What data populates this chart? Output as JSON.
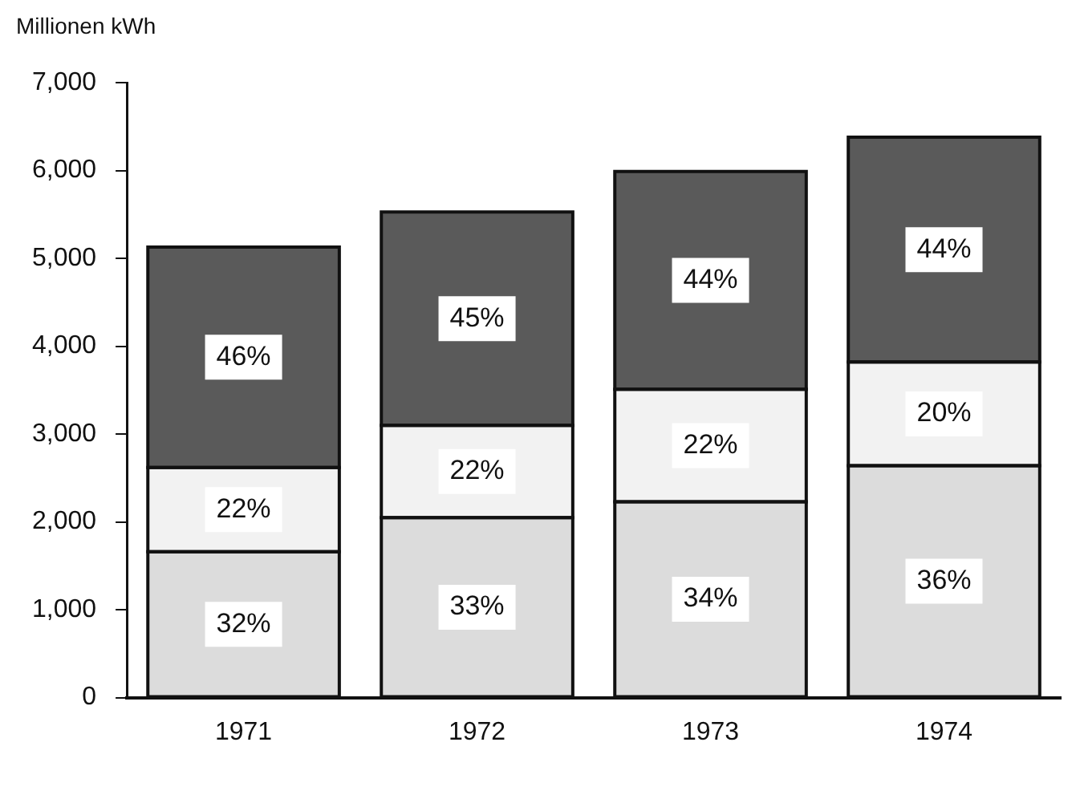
{
  "chart_data": {
    "type": "bar",
    "ylabel": "Millionen kWh",
    "categories": [
      "1971",
      "1972",
      "1973",
      "1974"
    ],
    "stacked": true,
    "ylim": [
      0,
      7000
    ],
    "yticks": [
      0,
      {
        "value": 1000,
        "label": "1,000"
      },
      {
        "value": 2000,
        "label": "2,000"
      },
      {
        "value": 3000,
        "label": "3,000"
      },
      {
        "value": 4000,
        "label": "4,000"
      },
      {
        "value": 5000,
        "label": "5,000"
      },
      {
        "value": 6000,
        "label": "6,000"
      },
      {
        "value": 7000,
        "label": "7,000"
      }
    ],
    "grid": false,
    "legend": false,
    "series": [
      {
        "color": "#dcdcdc",
        "values": [
          1660,
          2050,
          2230,
          2640
        ]
      },
      {
        "color": "#f2f2f2",
        "values": [
          960,
          1050,
          1280,
          1180
        ]
      },
      {
        "color": "#5a5a5a",
        "values": [
          2510,
          2430,
          2480,
          2560
        ]
      }
    ],
    "annotations": [
      "32%",
      "33%",
      "34%",
      "36%",
      "22%",
      "22%",
      "22%",
      "20%",
      "46%",
      "45%",
      "44%",
      "44%"
    ]
  }
}
